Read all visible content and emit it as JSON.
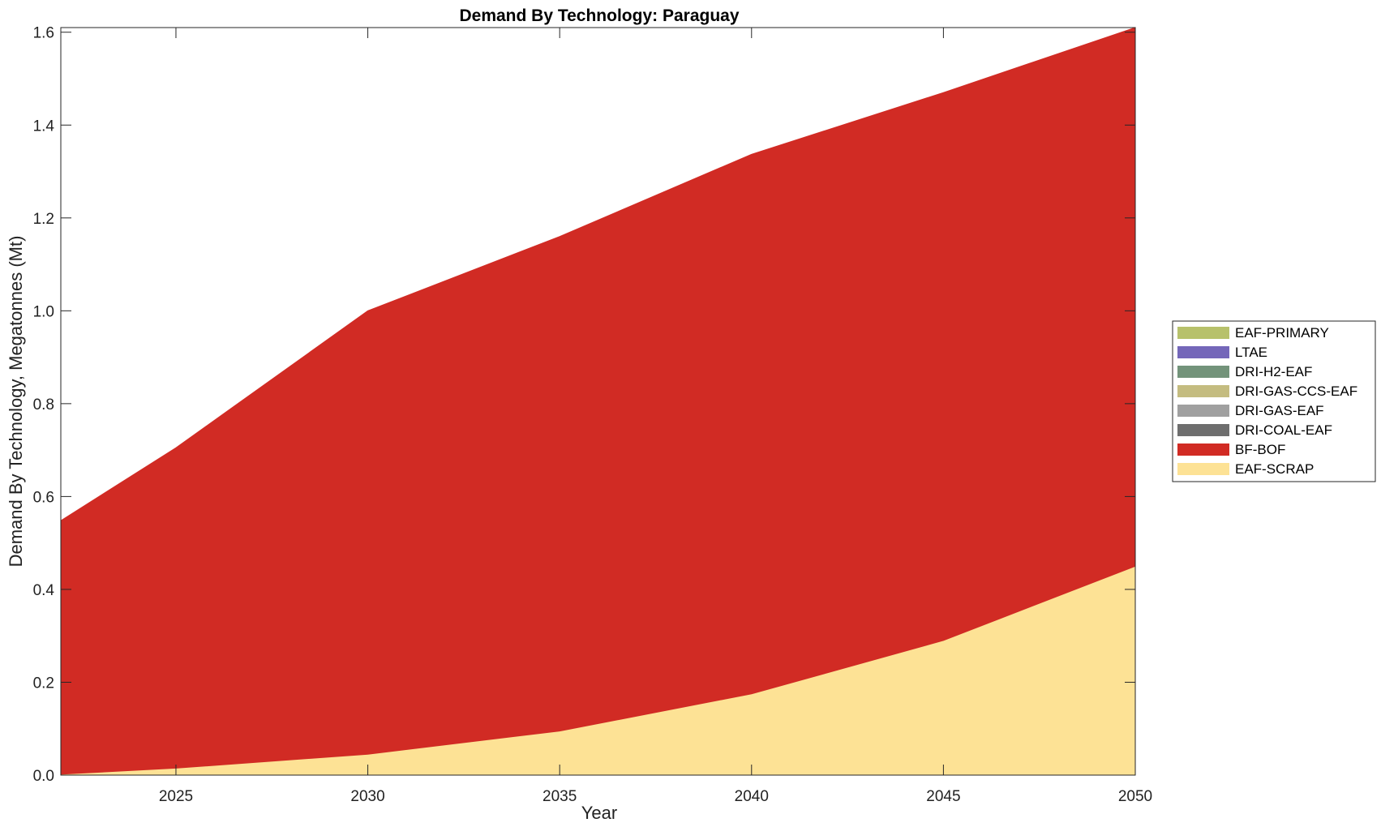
{
  "chart_data": {
    "type": "area",
    "title": "Demand By Technology: Paraguay",
    "xlabel": "Year",
    "ylabel": "Demand By Technology, Megatonnes (Mt)",
    "xlim": [
      2022,
      2050
    ],
    "ylim": [
      0,
      1.61
    ],
    "xticks": [
      2025,
      2030,
      2035,
      2040,
      2045,
      2050
    ],
    "yticks": [
      0.0,
      0.2,
      0.4,
      0.6,
      0.8,
      1.0,
      1.2,
      1.4,
      1.6
    ],
    "ytick_labels": [
      "0.0",
      "0.2",
      "0.4",
      "0.6",
      "0.8",
      "1.0",
      "1.2",
      "1.4",
      "1.6"
    ],
    "stacked": true,
    "grid": false,
    "legend_position": "right",
    "x": [
      2022,
      2025,
      2030,
      2035,
      2040,
      2045,
      2050
    ],
    "series": [
      {
        "name": "EAF-SCRAP",
        "color": "#FDE295",
        "values": [
          0.002,
          0.015,
          0.045,
          0.095,
          0.175,
          0.29,
          0.45
        ]
      },
      {
        "name": "BF-BOF",
        "color": "#D12B24",
        "values": [
          0.546,
          0.69,
          0.955,
          1.065,
          1.162,
          1.18,
          1.16
        ]
      },
      {
        "name": "DRI-COAL-EAF",
        "color": "#6E6E6E",
        "values": [
          0,
          0,
          0,
          0,
          0,
          0,
          0
        ]
      },
      {
        "name": "DRI-GAS-EAF",
        "color": "#A0A0A0",
        "values": [
          0,
          0,
          0,
          0,
          0,
          0,
          0
        ]
      },
      {
        "name": "DRI-GAS-CCS-EAF",
        "color": "#C4BC80",
        "values": [
          0,
          0,
          0,
          0,
          0,
          0,
          0
        ]
      },
      {
        "name": "DRI-H2-EAF",
        "color": "#73937A",
        "values": [
          0,
          0,
          0,
          0,
          0,
          0,
          0
        ]
      },
      {
        "name": "LTAE",
        "color": "#7467B9",
        "values": [
          0,
          0,
          0,
          0,
          0,
          0,
          0
        ]
      },
      {
        "name": "EAF-PRIMARY",
        "color": "#B7C16B",
        "values": [
          0,
          0,
          0,
          0,
          0,
          0,
          0
        ]
      }
    ],
    "legend_order": [
      "EAF-PRIMARY",
      "LTAE",
      "DRI-H2-EAF",
      "DRI-GAS-CCS-EAF",
      "DRI-GAS-EAF",
      "DRI-COAL-EAF",
      "BF-BOF",
      "EAF-SCRAP"
    ]
  }
}
